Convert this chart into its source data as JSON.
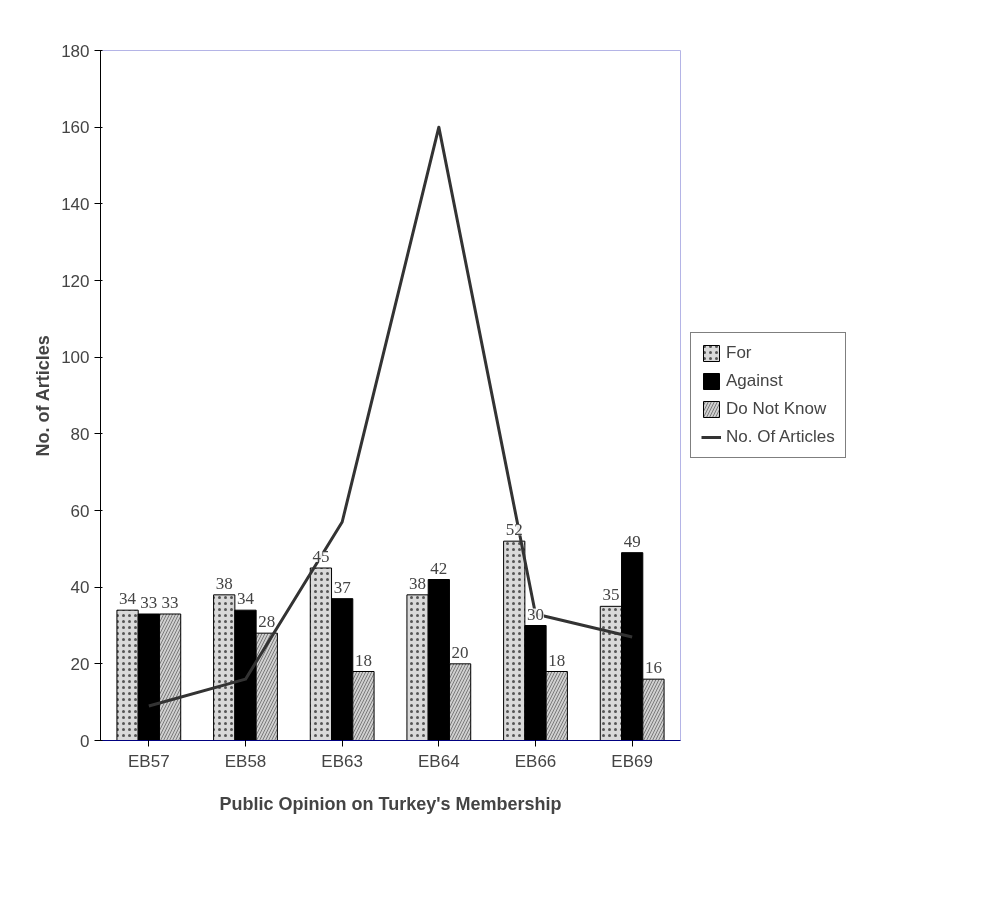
{
  "chart_data": {
    "type": "bar",
    "xlabel": "Public Opinion on Turkey's Membership",
    "ylabel": "No. of Articles",
    "categories": [
      "EB57",
      "EB58",
      "EB63",
      "EB64",
      "EB66",
      "EB69"
    ],
    "ylim": [
      0,
      180
    ],
    "yticks": [
      0,
      20,
      40,
      60,
      80,
      100,
      120,
      140,
      160,
      180
    ],
    "grid": false,
    "legend": "right",
    "series": [
      {
        "name": "For",
        "color": "#d9d9d9",
        "values": [
          34,
          38,
          45,
          38,
          52,
          35
        ],
        "value_labels": [
          "34",
          "38",
          "45",
          "38",
          "52",
          "35"
        ]
      },
      {
        "name": "Against",
        "color": "#000000",
        "values": [
          33,
          34,
          37,
          42,
          30,
          49
        ],
        "value_labels": [
          "33",
          "34",
          "37",
          "42",
          "30",
          "49"
        ]
      },
      {
        "name": "Do Not Know",
        "color": "#cfcfcf",
        "values": [
          33,
          28,
          18,
          20,
          18,
          16
        ],
        "value_labels": [
          "33",
          "28",
          "18",
          "20",
          "18",
          "16"
        ]
      },
      {
        "name": "No. Of Articles",
        "type": "line",
        "color": "#333333",
        "values": [
          9,
          16,
          57,
          160,
          33,
          27
        ]
      }
    ]
  }
}
